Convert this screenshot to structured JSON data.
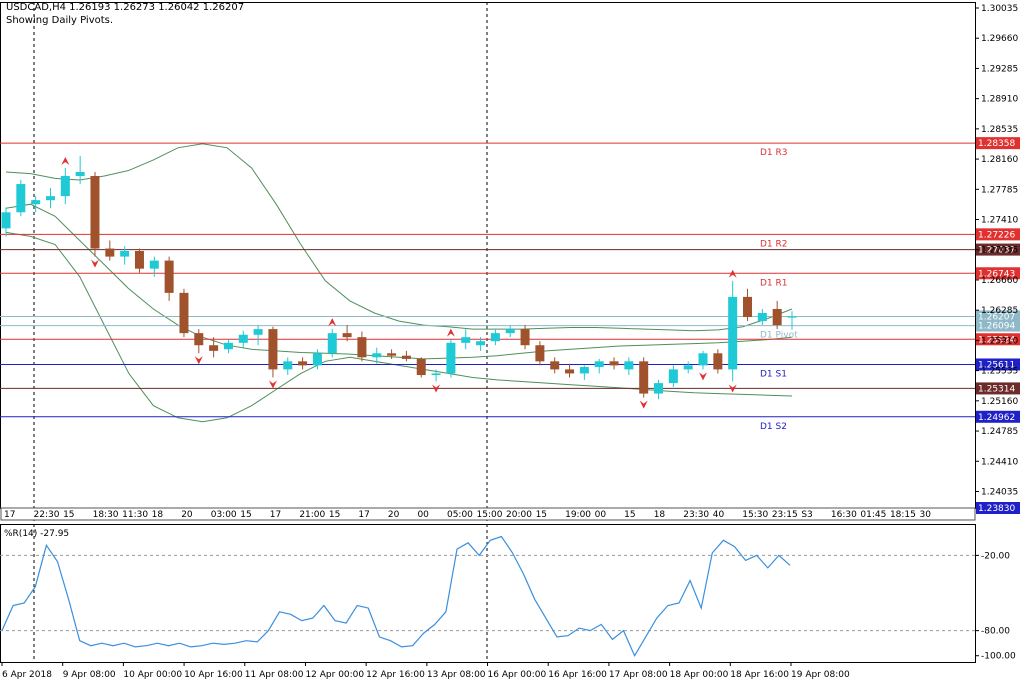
{
  "header": {
    "title": "USDCAD,H4  1.26193 1.26273 1.26042 1.26207",
    "subtitle": "Showing Daily Pivots."
  },
  "colors": {
    "bull": "#1fc9d6",
    "bear": "#a0522d",
    "band": "#4f8f5a",
    "resist": "#e03030",
    "support": "#2020c8",
    "pivot": "#8fb8c8",
    "wpr": "#3a8fe0",
    "neutral": "#6d2a2a"
  },
  "chart_data": [
    {
      "type": "candlestick",
      "symbol": "USDCAD",
      "timeframe": "H4",
      "ylim": [
        1.2383,
        1.30035
      ],
      "y_ticks": [
        "1.30035",
        "1.29660",
        "1.29285",
        "1.28910",
        "1.28535",
        "1.28160",
        "1.27785",
        "1.27410",
        "1.27035",
        "1.26660",
        "1.26285",
        "1.25910",
        "1.25535",
        "1.25160",
        "1.24785",
        "1.24410",
        "1.24035"
      ],
      "x_ticks": [
        "6 Apr 2018",
        "9 Apr 08:00",
        "10 Apr 00:00",
        "10 Apr 16:00",
        "11 Apr 08:00",
        "12 Apr 00:00",
        "12 Apr 16:00",
        "13 Apr 08:00",
        "16 Apr 00:00",
        "16 Apr 16:00",
        "17 Apr 08:00",
        "18 Apr 00:00",
        "18 Apr 16:00",
        "19 Apr 08:00"
      ],
      "candles": [
        [
          1.273,
          1.2756,
          1.272,
          1.275
        ],
        [
          1.275,
          1.279,
          1.2745,
          1.2785
        ],
        [
          1.276,
          1.277,
          1.275,
          1.2765
        ],
        [
          1.2765,
          1.278,
          1.2755,
          1.277
        ],
        [
          1.277,
          1.2805,
          1.276,
          1.2795
        ],
        [
          1.2795,
          1.282,
          1.2785,
          1.28
        ],
        [
          1.2795,
          1.28,
          1.2695,
          1.2705
        ],
        [
          1.2705,
          1.2715,
          1.269,
          1.2695
        ],
        [
          1.2695,
          1.2708,
          1.2685,
          1.2702
        ],
        [
          1.2702,
          1.2705,
          1.2675,
          1.268
        ],
        [
          1.268,
          1.2695,
          1.267,
          1.269
        ],
        [
          1.269,
          1.2695,
          1.264,
          1.265
        ],
        [
          1.265,
          1.2655,
          1.2595,
          1.26
        ],
        [
          1.26,
          1.2605,
          1.2575,
          1.2585
        ],
        [
          1.2585,
          1.2595,
          1.257,
          1.2578
        ],
        [
          1.258,
          1.2592,
          1.2575,
          1.2588
        ],
        [
          1.2588,
          1.2603,
          1.2582,
          1.2598
        ],
        [
          1.2598,
          1.261,
          1.2585,
          1.2605
        ],
        [
          1.2605,
          1.2608,
          1.2545,
          1.2555
        ],
        [
          1.2555,
          1.257,
          1.2548,
          1.2565
        ],
        [
          1.2565,
          1.257,
          1.2555,
          1.256
        ],
        [
          1.256,
          1.258,
          1.2555,
          1.2575
        ],
        [
          1.2575,
          1.2605,
          1.257,
          1.26
        ],
        [
          1.26,
          1.261,
          1.259,
          1.2595
        ],
        [
          1.2595,
          1.2602,
          1.2565,
          1.257
        ],
        [
          1.257,
          1.2582,
          1.2562,
          1.2575
        ],
        [
          1.2575,
          1.258,
          1.2568,
          1.2572
        ],
        [
          1.2572,
          1.2578,
          1.2565,
          1.2568
        ],
        [
          1.2568,
          1.257,
          1.2545,
          1.2548
        ],
        [
          1.2548,
          1.2555,
          1.254,
          1.255
        ],
        [
          1.255,
          1.2592,
          1.2545,
          1.2588
        ],
        [
          1.2588,
          1.2605,
          1.258,
          1.2595
        ],
        [
          1.2585,
          1.2595,
          1.2578,
          1.259
        ],
        [
          1.259,
          1.2605,
          1.2585,
          1.26
        ],
        [
          1.26,
          1.261,
          1.2595,
          1.2605
        ],
        [
          1.2605,
          1.261,
          1.258,
          1.2585
        ],
        [
          1.2585,
          1.259,
          1.256,
          1.2565
        ],
        [
          1.2565,
          1.257,
          1.255,
          1.2555
        ],
        [
          1.2555,
          1.2562,
          1.2545,
          1.255
        ],
        [
          1.255,
          1.256,
          1.2542,
          1.2558
        ],
        [
          1.2558,
          1.2568,
          1.255,
          1.2565
        ],
        [
          1.2565,
          1.257,
          1.2555,
          1.256
        ],
        [
          1.2555,
          1.257,
          1.2548,
          1.2565
        ],
        [
          1.2565,
          1.257,
          1.252,
          1.2525
        ],
        [
          1.2525,
          1.2542,
          1.2518,
          1.2538
        ],
        [
          1.2538,
          1.256,
          1.2533,
          1.2555
        ],
        [
          1.2555,
          1.2565,
          1.255,
          1.256
        ],
        [
          1.256,
          1.2578,
          1.2555,
          1.2575
        ],
        [
          1.2575,
          1.258,
          1.255,
          1.2555
        ],
        [
          1.2555,
          1.2665,
          1.254,
          1.2645
        ],
        [
          1.2645,
          1.2655,
          1.2615,
          1.262
        ],
        [
          1.2615,
          1.263,
          1.261,
          1.2625
        ],
        [
          1.263,
          1.264,
          1.2605,
          1.261
        ],
        [
          1.26193,
          1.26273,
          1.26042,
          1.26207
        ]
      ],
      "bollinger": {
        "upper": [
          1.28,
          1.2798,
          1.2792,
          1.279,
          1.2795,
          1.2802,
          1.2815,
          1.283,
          1.2835,
          1.283,
          1.2805,
          1.276,
          1.271,
          1.2665,
          1.264,
          1.2625,
          1.2615,
          1.261,
          1.2608,
          1.2605,
          1.2605,
          1.2605,
          1.2606,
          1.2607,
          1.2607,
          1.2606,
          1.2605,
          1.2604,
          1.2603,
          1.2604,
          1.2608,
          1.2618,
          1.263
        ],
        "middle": [
          1.2755,
          1.276,
          1.2745,
          1.2715,
          1.2685,
          1.2655,
          1.263,
          1.261,
          1.2595,
          1.2585,
          1.258,
          1.2578,
          1.2576,
          1.2575,
          1.2574,
          1.2572,
          1.257,
          1.2568,
          1.2569,
          1.257,
          1.2572,
          1.2575,
          1.2578,
          1.258,
          1.2582,
          1.2584,
          1.2585,
          1.2586,
          1.2587,
          1.2588,
          1.259,
          1.2592,
          1.2595
        ],
        "lower": [
          1.2725,
          1.272,
          1.271,
          1.267,
          1.261,
          1.255,
          1.251,
          1.2495,
          1.249,
          1.2495,
          1.251,
          1.253,
          1.255,
          1.2565,
          1.257,
          1.2565,
          1.256,
          1.2555,
          1.255,
          1.2545,
          1.2542,
          1.254,
          1.2538,
          1.2536,
          1.2534,
          1.2532,
          1.253,
          1.2528,
          1.2526,
          1.2525,
          1.2524,
          1.2523,
          1.2522
        ]
      },
      "levels": [
        {
          "name": "D1 R3",
          "value": 1.28358,
          "label": "1.28358",
          "kind": "resist"
        },
        {
          "name": "D1 R2",
          "value": 1.27226,
          "label": "1.27226",
          "kind": "resist"
        },
        {
          "name": "",
          "value": 1.27037,
          "label": "1.27037",
          "kind": "neutral"
        },
        {
          "name": "D1 R1",
          "value": 1.26743,
          "label": "1.26743",
          "kind": "resist"
        },
        {
          "name": "",
          "value": 1.26207,
          "label": "1.26207",
          "kind": "pivot"
        },
        {
          "name": "D1 Pivot",
          "value": 1.26094,
          "label": "1.26094",
          "kind": "pivot"
        },
        {
          "name": "",
          "value": 1.25924,
          "label": "1.25924",
          "kind": "resist"
        },
        {
          "name": "D1 S1",
          "value": 1.25611,
          "label": "1.25611",
          "kind": "support"
        },
        {
          "name": "",
          "value": 1.25314,
          "label": "1.25314",
          "kind": "neutral"
        },
        {
          "name": "D1 S2",
          "value": 1.24962,
          "label": "1.24962",
          "kind": "support"
        },
        {
          "name": "",
          "value": 1.2383,
          "label": "1.23830",
          "kind": "support"
        }
      ],
      "fractals_up": [
        4,
        22,
        30,
        49
      ],
      "fractals_down": [
        6,
        13,
        18,
        29,
        43,
        47,
        49
      ],
      "session_labels": [
        "17",
        "22:30",
        "15",
        "18:30",
        "11:30",
        "18",
        "20",
        "03:00",
        "15",
        "17",
        "21:00",
        "15",
        "17",
        "20",
        "00",
        "05:00",
        "15:00",
        "20:00",
        "15",
        "19:00",
        "00",
        "15",
        "18",
        "23:30",
        "40",
        "15:30",
        "23:15",
        "S3",
        "16:30",
        "01:45",
        "18:15",
        "30"
      ]
    },
    {
      "type": "line",
      "name": "%R(14) -27.95",
      "ylim": [
        -105,
        5
      ],
      "y_ticks": [
        "-20.00",
        "-80.00",
        "-100.00"
      ],
      "levels": [
        -20,
        -80
      ],
      "values": [
        -80,
        -60,
        -58,
        -45,
        -12,
        -25,
        -55,
        -88,
        -92,
        -90,
        -92,
        -90,
        -93,
        -92,
        -90,
        -92,
        -90,
        -93,
        -92,
        -90,
        -91,
        -90,
        -88,
        -89,
        -80,
        -65,
        -67,
        -72,
        -70,
        -60,
        -72,
        -74,
        -60,
        -62,
        -85,
        -88,
        -93,
        -92,
        -82,
        -75,
        -65,
        -15,
        -10,
        -20,
        -8,
        -5,
        -18,
        -35,
        -55,
        -70,
        -85,
        -84,
        -78,
        -80,
        -75,
        -87,
        -80,
        -100,
        -85,
        -70,
        -60,
        -58,
        -40,
        -62,
        -18,
        -8,
        -13,
        -24,
        -20,
        -30,
        -20,
        -27.95
      ]
    }
  ]
}
